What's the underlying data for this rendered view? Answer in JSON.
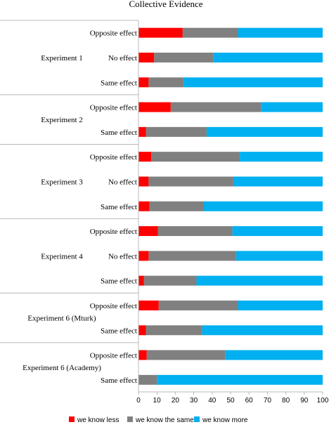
{
  "chart_data": {
    "type": "bar",
    "stacked": true,
    "orientation": "horizontal",
    "title": "Collective Evidence",
    "xlim": [
      0,
      100
    ],
    "x_ticks": [
      0,
      10,
      20,
      30,
      40,
      50,
      60,
      70,
      80,
      90,
      100
    ],
    "legend_position": "bottom",
    "grid": false,
    "colors": {
      "we know less": "#ff0000",
      "we know the same": "#808080",
      "we know more": "#00b0f0"
    },
    "series_names": [
      "we know less",
      "we know the same",
      "we know more"
    ],
    "groups": [
      {
        "label": "Experiment 1",
        "rows": [
          {
            "label": "Opposite effect",
            "values": [
              24,
              30,
              46
            ]
          },
          {
            "label": "No effect",
            "values": [
              8.5,
              32,
              59.5
            ]
          },
          {
            "label": "Same effect",
            "values": [
              5.5,
              19,
              75.5
            ]
          }
        ]
      },
      {
        "label": "Experiment 2",
        "rows": [
          {
            "label": "Opposite effect",
            "values": [
              17.5,
              49,
              33.5
            ]
          },
          {
            "label": "Same effect",
            "values": [
              4,
              33,
              63
            ]
          }
        ]
      },
      {
        "label": "Experiment 3",
        "rows": [
          {
            "label": "Opposite effect",
            "values": [
              7,
              48,
              45
            ]
          },
          {
            "label": "No effect",
            "values": [
              5.5,
              46,
              48.5
            ]
          },
          {
            "label": "Same effect",
            "values": [
              6,
              29.5,
              64.5
            ]
          }
        ]
      },
      {
        "label": "Experiment 4",
        "rows": [
          {
            "label": "Opposite effect",
            "values": [
              10.5,
              40.5,
              49
            ]
          },
          {
            "label": "No effect",
            "values": [
              5.5,
              47.5,
              47
            ]
          },
          {
            "label": "Same effect",
            "values": [
              3,
              28.5,
              68.5
            ]
          }
        ]
      },
      {
        "label": "Experiment 6 (Mturk)",
        "rows": [
          {
            "label": "Opposite effect",
            "values": [
              11,
              43,
              46
            ]
          },
          {
            "label": "Same effect",
            "values": [
              4,
              30.5,
              65.5
            ]
          }
        ]
      },
      {
        "label": "Experiment 6 (Academy)",
        "rows": [
          {
            "label": "Opposite effect",
            "values": [
              4.5,
              42.5,
              53
            ]
          },
          {
            "label": "Same effect",
            "values": [
              0,
              10,
              90
            ]
          }
        ]
      }
    ]
  }
}
